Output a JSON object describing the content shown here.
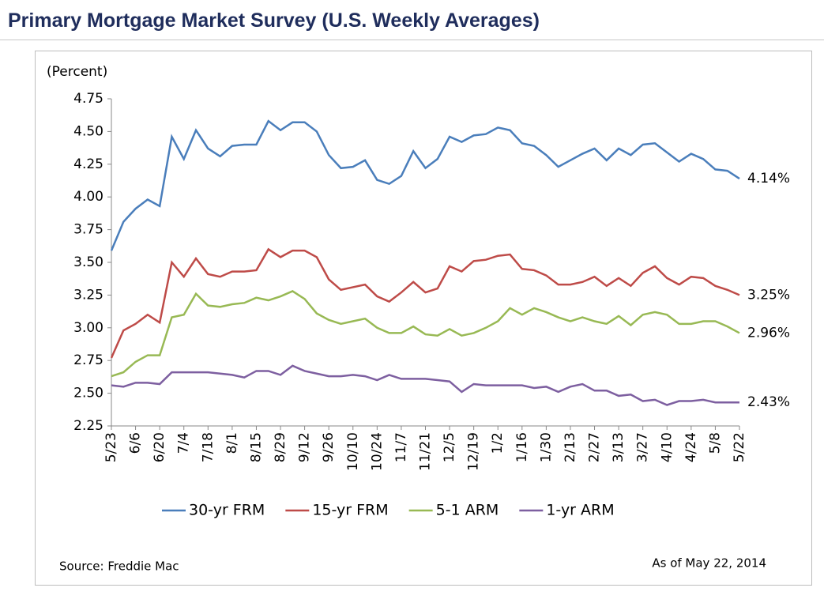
{
  "header": {
    "title": "Primary Mortgage Market Survey (U.S. Weekly Averages)"
  },
  "chart_data": {
    "type": "line",
    "y_label": "(Percent)",
    "source": "Source: Freddie Mac",
    "note": "As of May 22, 2014",
    "categories": [
      "5/23",
      null,
      "6/6",
      null,
      "6/20",
      null,
      "7/4",
      null,
      "7/18",
      null,
      "8/1",
      null,
      "8/15",
      null,
      "8/29",
      null,
      "9/12",
      null,
      "9/26",
      null,
      "10/10",
      null,
      "10/24",
      null,
      "11/7",
      null,
      "11/21",
      null,
      "12/5",
      null,
      "12/19",
      null,
      "1/2",
      null,
      "1/16",
      null,
      "1/30",
      null,
      "2/13",
      null,
      "2/27",
      null,
      "3/13",
      null,
      "3/27",
      null,
      "4/10",
      null,
      "4/24",
      null,
      "5/8",
      null,
      "5/22"
    ],
    "ylim": [
      2.25,
      4.75
    ],
    "yticks": [
      2.25,
      {
        "value": 2.5,
        "label": "2.50"
      },
      2.75,
      {
        "value": 3,
        "label": "3.00"
      },
      3.25,
      {
        "value": 3.5,
        "label": "3.50"
      },
      3.75,
      {
        "value": 4,
        "label": "4.00"
      },
      4.25,
      {
        "value": 4.5,
        "label": "4.50"
      },
      4.75
    ],
    "grid": false,
    "legend": "bottom",
    "series": [
      {
        "name": "30-yr FRM",
        "color": "#4a7ebb",
        "end_label": "4.14%",
        "values": [
          3.59,
          3.81,
          3.91,
          3.98,
          3.93,
          4.46,
          4.29,
          4.51,
          4.37,
          4.31,
          4.39,
          4.4,
          4.4,
          4.58,
          4.51,
          4.57,
          4.57,
          4.5,
          4.32,
          4.22,
          4.23,
          4.28,
          4.13,
          4.1,
          4.16,
          4.35,
          4.22,
          4.29,
          4.46,
          4.42,
          4.47,
          4.48,
          4.53,
          4.51,
          4.41,
          4.39,
          4.32,
          4.23,
          4.28,
          4.33,
          4.37,
          4.28,
          4.37,
          4.32,
          4.4,
          4.41,
          4.34,
          4.27,
          4.33,
          4.29,
          4.21,
          4.2,
          4.14
        ]
      },
      {
        "name": "15-yr FRM",
        "color": "#be4b48",
        "end_label": "3.25%",
        "values": [
          2.77,
          2.98,
          3.03,
          3.1,
          3.04,
          3.5,
          3.39,
          3.53,
          3.41,
          3.39,
          3.43,
          3.43,
          3.44,
          3.6,
          3.54,
          3.59,
          3.59,
          3.54,
          3.37,
          3.29,
          3.31,
          3.33,
          3.24,
          3.2,
          3.27,
          3.35,
          3.27,
          3.3,
          3.47,
          3.43,
          3.51,
          3.52,
          3.55,
          3.56,
          3.45,
          3.44,
          3.4,
          3.33,
          3.33,
          3.35,
          3.39,
          3.32,
          3.38,
          3.32,
          3.42,
          3.47,
          3.38,
          3.33,
          3.39,
          3.38,
          3.32,
          3.29,
          3.25
        ]
      },
      {
        "name": "5-1 ARM",
        "color": "#98b954",
        "end_label": "2.96%",
        "values": [
          2.63,
          2.66,
          2.74,
          2.79,
          2.79,
          3.08,
          3.1,
          3.26,
          3.17,
          3.16,
          3.18,
          3.19,
          3.23,
          3.21,
          3.24,
          3.28,
          3.22,
          3.11,
          3.06,
          3.03,
          3.05,
          3.07,
          3.0,
          2.96,
          2.96,
          3.01,
          2.95,
          2.94,
          2.99,
          2.94,
          2.96,
          3.0,
          3.05,
          3.15,
          3.1,
          3.15,
          3.12,
          3.08,
          3.05,
          3.08,
          3.05,
          3.03,
          3.09,
          3.02,
          3.1,
          3.12,
          3.1,
          3.03,
          3.03,
          3.05,
          3.05,
          3.01,
          2.96
        ]
      },
      {
        "name": "1-yr ARM",
        "color": "#7d5fa0",
        "end_label": "2.43%",
        "values": [
          2.56,
          2.55,
          2.58,
          2.58,
          2.57,
          2.66,
          2.66,
          2.66,
          2.66,
          2.65,
          2.64,
          2.62,
          2.67,
          2.67,
          2.64,
          2.71,
          2.67,
          2.65,
          2.63,
          2.63,
          2.64,
          2.63,
          2.6,
          2.64,
          2.61,
          2.61,
          2.61,
          2.6,
          2.59,
          2.51,
          2.57,
          2.56,
          2.56,
          2.56,
          2.56,
          2.54,
          2.55,
          2.51,
          2.55,
          2.57,
          2.52,
          2.52,
          2.48,
          2.49,
          2.44,
          2.45,
          2.41,
          2.44,
          2.44,
          2.45,
          2.43,
          2.43,
          2.43
        ]
      }
    ]
  }
}
